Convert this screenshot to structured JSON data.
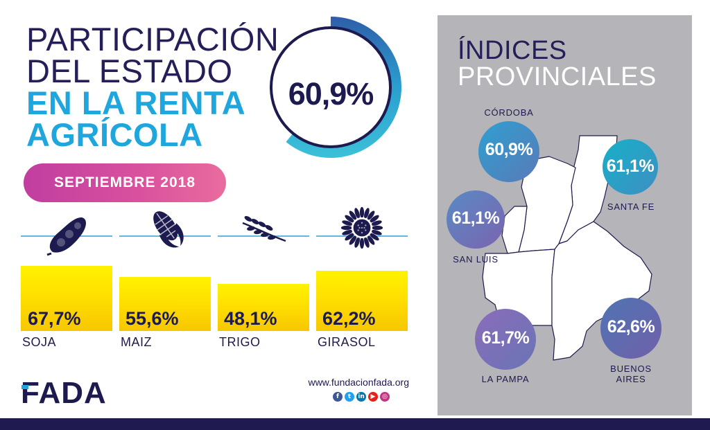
{
  "title": {
    "line1": "PARTICIPACIÓN",
    "line2": "DEL ESTADO",
    "line3": "EN LA RENTA",
    "line4": "AGRÍCOLA"
  },
  "headline_value": "60,9%",
  "headline_fraction": 0.609,
  "date_label": "SEPTIEMBRE 2018",
  "crops": [
    {
      "name": "SOJA",
      "value": "67,7%",
      "icon": "soybean-icon"
    },
    {
      "name": "MAIZ",
      "value": "55,6%",
      "icon": "corn-icon"
    },
    {
      "name": "TRIGO",
      "value": "48,1%",
      "icon": "wheat-icon"
    },
    {
      "name": "GIRASOL",
      "value": "62,2%",
      "icon": "sunflower-icon"
    }
  ],
  "brand": {
    "logo": "FADA",
    "url": "www.fundacionfada.org"
  },
  "socials": [
    "facebook-icon",
    "twitter-icon",
    "linkedin-icon",
    "youtube-icon",
    "instagram-icon"
  ],
  "panel": {
    "title_line1": "ÍNDICES",
    "title_line2": "PROVINCIALES"
  },
  "provinces": [
    {
      "name": "CÓRDOBA",
      "value": "60,9%"
    },
    {
      "name": "SANTA FE",
      "value": "61,1%"
    },
    {
      "name": "SAN LUIS",
      "value": "61,1%"
    },
    {
      "name": "LA PAMPA",
      "value": "61,7%"
    },
    {
      "name": "BUENOS",
      "name2": "AIRES",
      "value": "62,6%"
    }
  ],
  "colors": {
    "navy": "#1f1a4f",
    "accent_blue": "#1ea6dd",
    "pill_pink": "#d04f9e",
    "bar_yellow": "#ffe000",
    "panel_gray": "#b5b4b8",
    "cordoba": "#3f8fc2",
    "santa_fe": "#24a8c7",
    "san_luis": "#6478b8",
    "la_pampa": "#8367b1",
    "buenos_aires": "#5a6aa8"
  }
}
